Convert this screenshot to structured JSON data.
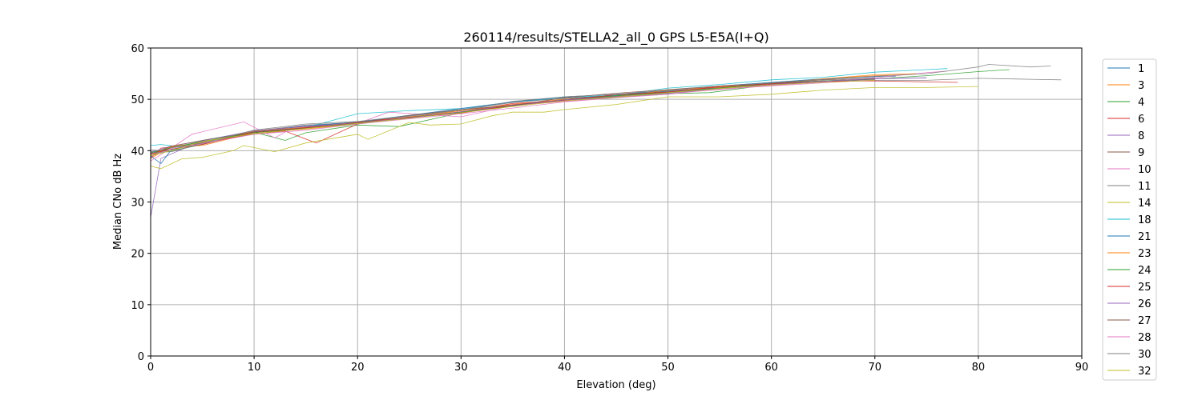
{
  "chart_data": {
    "type": "line",
    "title": "260114/results/STELLA2_all_0 GPS L5-E5A(I+Q)",
    "xlabel": "Elevation (deg)",
    "ylabel": "Median CNo dB Hz",
    "xlim": [
      0,
      90
    ],
    "ylim": [
      0,
      60
    ],
    "xticks": [
      0,
      10,
      20,
      30,
      40,
      50,
      60,
      70,
      80,
      90
    ],
    "yticks": [
      0,
      10,
      20,
      30,
      40,
      50,
      60
    ],
    "grid": true,
    "legend_position": "right",
    "series": [
      {
        "name": "1",
        "color": "#1f77b4",
        "x": [
          0,
          2,
          5,
          10,
          15,
          20,
          25,
          30,
          35,
          40,
          45,
          50,
          55,
          60,
          65,
          70,
          72
        ],
        "y": [
          39.5,
          40.5,
          41.5,
          43.8,
          44.8,
          45.5,
          46.8,
          48,
          49.5,
          50.2,
          50.8,
          51.8,
          52.6,
          53.3,
          53.9,
          54.4,
          54.5
        ]
      },
      {
        "name": "3",
        "color": "#ff7f0e",
        "x": [
          0,
          2,
          5,
          10,
          15,
          20,
          25,
          30,
          35,
          40,
          45,
          50,
          55,
          60,
          65,
          70,
          73
        ],
        "y": [
          38.5,
          40.8,
          41,
          43.5,
          44.2,
          45.2,
          46.6,
          47.6,
          49,
          50,
          50.6,
          51.7,
          52.6,
          53.2,
          54,
          54.6,
          54.8
        ]
      },
      {
        "name": "4",
        "color": "#2ca02c",
        "x": [
          0,
          2,
          5,
          10,
          13,
          15,
          20,
          24,
          30,
          35,
          40,
          45,
          50,
          54,
          60,
          65,
          70,
          75,
          80,
          83
        ],
        "y": [
          39.8,
          40,
          41.2,
          43.6,
          42,
          43.5,
          45,
          44.7,
          47.4,
          48.8,
          49.8,
          50.4,
          51.1,
          51.3,
          52.9,
          53.6,
          54,
          54.6,
          55.4,
          55.8
        ]
      },
      {
        "name": "6",
        "color": "#d62728",
        "x": [
          0,
          1,
          5,
          10,
          13,
          16,
          20,
          25,
          30,
          35,
          40,
          45,
          50,
          55,
          60,
          65,
          70
        ],
        "y": [
          38.5,
          40.5,
          41.4,
          43.3,
          43.8,
          41.5,
          45.2,
          46.4,
          47.5,
          49.2,
          49.8,
          50.6,
          51.4,
          52.4,
          52.8,
          53.5,
          54
        ]
      },
      {
        "name": "8",
        "color": "#9467bd",
        "x": [
          0,
          1,
          5,
          10,
          15,
          20,
          25,
          30,
          35,
          40,
          45,
          50,
          55,
          60,
          65,
          70,
          75
        ],
        "y": [
          27,
          38.5,
          42,
          43.7,
          44.5,
          45.4,
          46.3,
          47.6,
          48.8,
          49.8,
          50.6,
          51.4,
          52.2,
          53,
          53.6,
          54,
          54.2
        ]
      },
      {
        "name": "9",
        "color": "#8c564b",
        "x": [
          0,
          2,
          5,
          10,
          15,
          20,
          25,
          30,
          35,
          40,
          45,
          50,
          55,
          60,
          65,
          70
        ],
        "y": [
          39,
          40.6,
          41.8,
          43.2,
          44.5,
          45.3,
          46.4,
          47.5,
          48.7,
          50,
          50.9,
          51.5,
          52.3,
          53,
          53.5,
          53.9
        ]
      },
      {
        "name": "10",
        "color": "#e377c2",
        "x": [
          0,
          2,
          4,
          9,
          12,
          14,
          20,
          23,
          30,
          35,
          40,
          45,
          50,
          55,
          60,
          65,
          70,
          75,
          77
        ],
        "y": [
          38.8,
          40.5,
          43.2,
          45.6,
          42.5,
          44.7,
          45.3,
          47.5,
          46.6,
          48.8,
          49.6,
          50.4,
          51.2,
          51.9,
          52.7,
          53.4,
          54.2,
          55.2,
          55.5
        ]
      },
      {
        "name": "11",
        "color": "#7f7f7f",
        "x": [
          0,
          2,
          5,
          10,
          15,
          20,
          25,
          30,
          35,
          40,
          45,
          50,
          55,
          60,
          65,
          70,
          75,
          80,
          85,
          88
        ],
        "y": [
          40.2,
          39.8,
          41.3,
          43.8,
          45,
          45.5,
          46.7,
          47.8,
          49.4,
          50.2,
          50.7,
          51.5,
          52.2,
          53.1,
          53.6,
          53.7,
          53.7,
          54.1,
          53.9,
          53.8
        ]
      },
      {
        "name": "14",
        "color": "#bcbd22",
        "x": [
          0,
          1,
          3,
          5,
          8,
          9,
          12,
          15,
          20,
          21,
          25,
          27,
          30,
          33,
          35,
          38,
          40,
          45,
          50,
          55,
          60,
          65,
          70,
          75,
          80
        ],
        "y": [
          37,
          36.5,
          38.4,
          38.7,
          40,
          41,
          39.8,
          41.5,
          43.2,
          42.2,
          45.5,
          45,
          45.2,
          46.8,
          47.5,
          47.5,
          48,
          49,
          50.5,
          50.5,
          51,
          51.8,
          52.3,
          52.3,
          52.5
        ]
      },
      {
        "name": "18",
        "color": "#17becf",
        "x": [
          0,
          1,
          3,
          5,
          10,
          15,
          20,
          25,
          30,
          35,
          40,
          45,
          50,
          55,
          60,
          65,
          70,
          75,
          77
        ],
        "y": [
          41,
          41.2,
          40.7,
          42,
          43.8,
          44.5,
          47.2,
          47.8,
          48.2,
          49.5,
          50.4,
          50.8,
          52.2,
          52.9,
          53.8,
          54.3,
          55.3,
          55.8,
          56
        ]
      },
      {
        "name": "21",
        "color": "#1f77b4",
        "x": [
          0,
          1,
          2,
          5,
          10,
          15,
          20,
          25,
          30,
          35,
          40,
          45,
          50,
          55,
          60,
          65,
          70
        ],
        "y": [
          39,
          37.5,
          40.2,
          41.7,
          43.7,
          44.8,
          45.6,
          46.9,
          48.2,
          49.5,
          50.5,
          51,
          51.6,
          52.6,
          53.3,
          54,
          54.4
        ]
      },
      {
        "name": "23",
        "color": "#ff7f0e",
        "x": [
          0,
          2,
          5,
          10,
          15,
          20,
          25,
          30,
          35,
          40,
          45,
          50,
          55,
          60,
          65,
          70,
          74
        ],
        "y": [
          39.2,
          40.8,
          41.6,
          43.8,
          44.6,
          45.5,
          46.5,
          47.8,
          49,
          50,
          50.5,
          51.8,
          52.4,
          53,
          54,
          54.8,
          55
        ]
      },
      {
        "name": "24",
        "color": "#2ca02c",
        "x": [
          0,
          2,
          5,
          10,
          15,
          20,
          25,
          30,
          35,
          40,
          45,
          50,
          55,
          60,
          65,
          70
        ],
        "y": [
          39.6,
          40.6,
          41.8,
          43.5,
          44.4,
          45.2,
          46.5,
          47.5,
          48.8,
          49.9,
          50.7,
          51.3,
          52.2,
          53.1,
          53.6,
          53.9
        ]
      },
      {
        "name": "25",
        "color": "#d62728",
        "x": [
          0,
          2,
          5,
          10,
          15,
          20,
          25,
          30,
          35,
          40,
          45,
          50,
          55,
          60,
          65,
          70,
          75,
          78
        ],
        "y": [
          39.4,
          40.3,
          41.2,
          43.6,
          44.5,
          45.5,
          46.5,
          47.3,
          48.9,
          49.8,
          50.9,
          51.4,
          52.5,
          53,
          53.5,
          53.6,
          53.4,
          53.3
        ]
      },
      {
        "name": "26",
        "color": "#9467bd",
        "x": [
          0,
          2,
          5,
          10,
          15,
          20,
          25,
          30,
          35,
          40,
          45,
          50,
          55,
          60,
          65,
          70,
          75
        ],
        "y": [
          39.7,
          40.9,
          41.9,
          43.9,
          44.7,
          45.4,
          46.4,
          47.6,
          48.9,
          49.9,
          50.5,
          51.2,
          52,
          52.9,
          53.5,
          54,
          54.2
        ]
      },
      {
        "name": "27",
        "color": "#8c564b",
        "x": [
          0,
          2,
          5,
          10,
          15,
          20,
          25,
          30,
          35,
          40,
          45,
          50,
          55,
          60,
          65,
          70
        ],
        "y": [
          39.3,
          40.9,
          42,
          43.6,
          44.4,
          45.4,
          46.9,
          48,
          48.8,
          50.3,
          51.2,
          51.9,
          52.6,
          53.1,
          53.8,
          54.1
        ]
      },
      {
        "name": "28",
        "color": "#e377c2",
        "x": [
          0,
          2,
          5,
          10,
          15,
          20,
          25,
          30,
          35,
          40,
          45,
          50,
          55,
          60,
          65,
          70
        ],
        "y": [
          38,
          40.5,
          41.4,
          43.2,
          44,
          45.2,
          46.2,
          47.2,
          48.3,
          49.5,
          50.3,
          51,
          52,
          52.6,
          53.2,
          53.8
        ]
      },
      {
        "name": "30",
        "color": "#7f7f7f",
        "x": [
          0,
          2,
          5,
          10,
          15,
          20,
          25,
          30,
          35,
          40,
          45,
          50,
          55,
          60,
          65,
          70,
          75,
          80,
          81,
          85,
          87
        ],
        "y": [
          39.6,
          39.8,
          41.5,
          44,
          45.2,
          45.7,
          46.8,
          47.9,
          49.6,
          50.5,
          51,
          51.8,
          52.6,
          53.2,
          53.9,
          54.5,
          55,
          56.3,
          56.8,
          56.3,
          56.5
        ]
      },
      {
        "name": "32",
        "color": "#bcbd22",
        "x": [
          0,
          2,
          5,
          10,
          15,
          20,
          25,
          30,
          35,
          40,
          45,
          50,
          55,
          60,
          65,
          70
        ],
        "y": [
          39,
          40,
          41.8,
          43.3,
          44.3,
          45.3,
          46.3,
          47.4,
          48.6,
          49.7,
          50.4,
          51.3,
          52.1,
          52.8,
          53.3,
          53.7
        ]
      }
    ]
  }
}
